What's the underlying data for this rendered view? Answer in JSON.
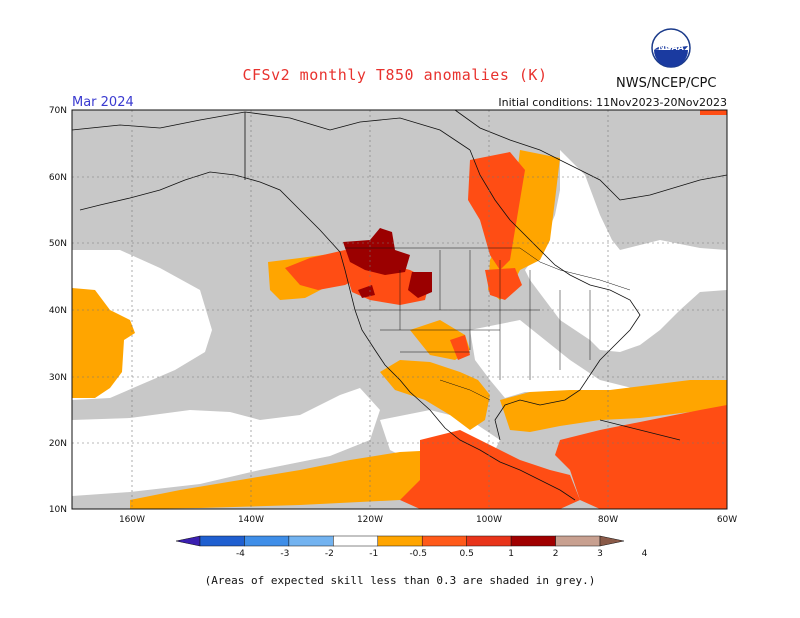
{
  "title": "CFSv2 monthly T850 anomalies (K)",
  "month": "Mar 2024",
  "initial_conditions": "Initial conditions: 11Nov2023-20Nov2023",
  "agency": "NWS/NCEP/CPC",
  "logo_text": "NOAA",
  "lat_labels": [
    "70N",
    "60N",
    "50N",
    "40N",
    "30N",
    "20N",
    "10N"
  ],
  "lon_labels": [
    "160W",
    "140W",
    "120W",
    "100W",
    "80W",
    "60W"
  ],
  "colorbar": {
    "labels": [
      "-4",
      "-3",
      "-2",
      "-1",
      "-0.5",
      "0.5",
      "1",
      "2",
      "3",
      "4"
    ],
    "colors": [
      "#3a1fb0",
      "#1f5fd0",
      "#3f8ee8",
      "#73b3f0",
      "#ffffff",
      "#ffa500",
      "#ff5a1a",
      "#e8341a",
      "#a00000",
      "#c8a090",
      "#8a5a48"
    ]
  },
  "note": "(Areas of expected skill less than 0.3 are shaded in grey.)",
  "colors": {
    "skill_grey": "#c8c8c8",
    "orange": "#ffa500",
    "red_orange": "#ff4d14",
    "dark_red": "#9b0000"
  }
}
